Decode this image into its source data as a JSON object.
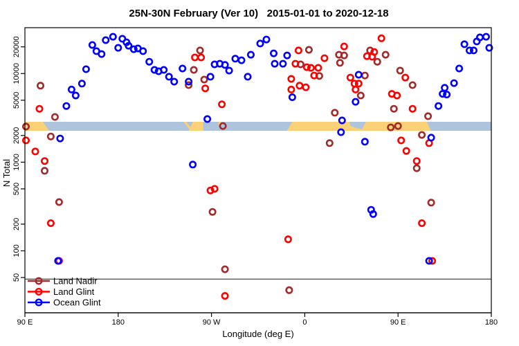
{
  "title": "25N-30N February (Ver 10)   2015-01-01 to 2020-12-18",
  "axes": {
    "y_label": "N Total",
    "x_label": "Longitude (deg E)",
    "y_ticks": [
      20000,
      10000,
      5000,
      2000,
      1000,
      500,
      200,
      100,
      50
    ],
    "x_ticks": [
      {
        "lon": 90,
        "label": "90 E"
      },
      {
        "lon": 180,
        "label": "180"
      },
      {
        "lon": 270,
        "label": "90 W"
      },
      {
        "lon": 360,
        "label": "0"
      },
      {
        "lon": 450,
        "label": "90 E"
      },
      {
        "lon": 540,
        "label": "180"
      }
    ]
  },
  "legend": {
    "items": [
      {
        "label": "Land Nadir",
        "key": "land_nadir"
      },
      {
        "label": "Land Glint",
        "key": "land_glint"
      },
      {
        "label": "Ocean Glint",
        "key": "ocean_glint"
      }
    ]
  },
  "colors": {
    "land_nadir": "#A12A2A",
    "land_glint": "#FF0000",
    "ocean_glint": "#0000FF",
    "map_ocean": "#AEC3DC",
    "map_land": "#FBD177",
    "ref_line": "#1a1a1a",
    "frame": "#000000"
  },
  "map_band": {
    "N_center": 2550,
    "segments": [
      {
        "kind": "land",
        "lon_start": 90,
        "lon_end": 110,
        "slant": "right"
      },
      {
        "kind": "land_streak",
        "lon_start": 243,
        "lon_end": 247
      },
      {
        "kind": "land",
        "lon_start": 250,
        "lon_end": 262,
        "slant": "left"
      },
      {
        "kind": "land_speck",
        "lon_start": 277,
        "lon_end": 279
      },
      {
        "kind": "land",
        "lon_start": 346,
        "lon_end": 479,
        "slant": "both"
      },
      {
        "kind": "ocean_patch",
        "lon_start": 403,
        "lon_end": 419
      }
    ]
  },
  "ref_line": {
    "N": 48
  },
  "chart_data": {
    "type": "scatter",
    "title": "25N-30N February (Ver 10)  2015-01-01 to 2020-12-18",
    "xlabel": "Longitude (deg E)",
    "ylabel": "N Total",
    "x_note": "x axis spans 450 deg of longitude: 90E → 180 → 90W → 0 → 90E → 180 (values 90..540)",
    "x_range": [
      90,
      540
    ],
    "y_scale": "log",
    "y_range": [
      20,
      33000
    ],
    "series": [
      {
        "name": "Land Nadir",
        "key": "land_nadir",
        "points": [
          [
            105,
            7300
          ],
          [
            119,
            3240
          ],
          [
            91,
            2520
          ],
          [
            115,
            1950
          ],
          [
            109,
            800
          ],
          [
            123,
            355
          ],
          [
            259,
            18200
          ],
          [
            253,
            11000
          ],
          [
            263,
            8550
          ],
          [
            248,
            7400
          ],
          [
            281,
            2560
          ],
          [
            271,
            275
          ],
          [
            283,
            62
          ],
          [
            345,
            36
          ],
          [
            364,
            18500
          ],
          [
            356,
            12700
          ],
          [
            374,
            9400
          ],
          [
            389,
            3610
          ],
          [
            384,
            1640
          ],
          [
            393,
            16300
          ],
          [
            398,
            16000
          ],
          [
            394,
            13200
          ],
          [
            423,
            18200
          ],
          [
            430,
            13600
          ],
          [
            438,
            16300
          ],
          [
            418,
            9500
          ],
          [
            414,
            5650
          ],
          [
            452,
            10800
          ],
          [
            464,
            7400
          ],
          [
            446,
            4000
          ],
          [
            443,
            2470
          ],
          [
            450,
            2560
          ],
          [
            468,
            855
          ],
          [
            473,
            2030
          ],
          [
            479,
            3300
          ],
          [
            482,
            350
          ]
        ]
      },
      {
        "name": "Land Glint",
        "key": "land_glint",
        "points": [
          [
            104,
            4000
          ],
          [
            91,
            1760
          ],
          [
            100,
            1320
          ],
          [
            109,
            1030
          ],
          [
            115,
            205
          ],
          [
            123,
            77
          ],
          [
            260,
            15200
          ],
          [
            254,
            15200
          ],
          [
            264,
            6800
          ],
          [
            280,
            4500
          ],
          [
            269,
            480
          ],
          [
            273,
            500
          ],
          [
            283,
            31
          ],
          [
            344,
            135
          ],
          [
            354,
            18200
          ],
          [
            351,
            12900
          ],
          [
            362,
            11800
          ],
          [
            366,
            11600
          ],
          [
            373,
            11600
          ],
          [
            369,
            9500
          ],
          [
            379,
            14900
          ],
          [
            347,
            8700
          ],
          [
            347,
            6600
          ],
          [
            355,
            7300
          ],
          [
            361,
            7000
          ],
          [
            398,
            20200
          ],
          [
            434,
            25000
          ],
          [
            427,
            17500
          ],
          [
            420,
            15700
          ],
          [
            425,
            15500
          ],
          [
            404,
            9000
          ],
          [
            457,
            9000
          ],
          [
            408,
            7700
          ],
          [
            412,
            7700
          ],
          [
            409,
            6600
          ],
          [
            444,
            5900
          ],
          [
            449,
            5650
          ],
          [
            464,
            4000
          ],
          [
            453,
            1760
          ],
          [
            458,
            1340
          ],
          [
            468,
            1030
          ],
          [
            480,
            1640
          ],
          [
            473,
            205
          ],
          [
            483,
            77
          ]
        ]
      },
      {
        "name": "Ocean Glint",
        "key": "ocean_glint",
        "points": [
          [
            122,
            77
          ],
          [
            124,
            1850
          ],
          [
            130,
            4300
          ],
          [
            135,
            6600
          ],
          [
            139,
            5650
          ],
          [
            145,
            7700
          ],
          [
            149,
            11200
          ],
          [
            155,
            21000
          ],
          [
            159,
            17900
          ],
          [
            164,
            16600
          ],
          [
            168,
            23800
          ],
          [
            175,
            26000
          ],
          [
            180,
            19500
          ],
          [
            184,
            24700
          ],
          [
            188,
            22500
          ],
          [
            190,
            20600
          ],
          [
            195,
            18800
          ],
          [
            199,
            19200
          ],
          [
            204,
            17900
          ],
          [
            210,
            13600
          ],
          [
            215,
            11000
          ],
          [
            219,
            10600
          ],
          [
            224,
            11000
          ],
          [
            229,
            9200
          ],
          [
            234,
            8100
          ],
          [
            242,
            11400
          ],
          [
            248,
            8100
          ],
          [
            252,
            940
          ],
          [
            266,
            3070
          ],
          [
            269,
            9200
          ],
          [
            273,
            12700
          ],
          [
            278,
            12900
          ],
          [
            283,
            12500
          ],
          [
            287,
            10800
          ],
          [
            293,
            14700
          ],
          [
            299,
            14100
          ],
          [
            305,
            9200
          ],
          [
            308,
            16300
          ],
          [
            317,
            21800
          ],
          [
            323,
            24200
          ],
          [
            330,
            16900
          ],
          [
            331,
            12900
          ],
          [
            339,
            12900
          ],
          [
            343,
            16000
          ],
          [
            348,
            5400
          ],
          [
            396,
            2960
          ],
          [
            395,
            2180
          ],
          [
            412,
            9700
          ],
          [
            409,
            4800
          ],
          [
            418,
            1700
          ],
          [
            424,
            290
          ],
          [
            426,
            260
          ],
          [
            480,
            77
          ],
          [
            482,
            1890
          ],
          [
            489,
            4300
          ],
          [
            493,
            5900
          ],
          [
            497,
            5800
          ],
          [
            495,
            6900
          ],
          [
            504,
            7800
          ],
          [
            509,
            11400
          ],
          [
            514,
            21400
          ],
          [
            519,
            18200
          ],
          [
            523,
            18200
          ],
          [
            526,
            23000
          ],
          [
            529,
            25600
          ],
          [
            535,
            26000
          ],
          [
            538,
            19500
          ]
        ]
      }
    ]
  }
}
